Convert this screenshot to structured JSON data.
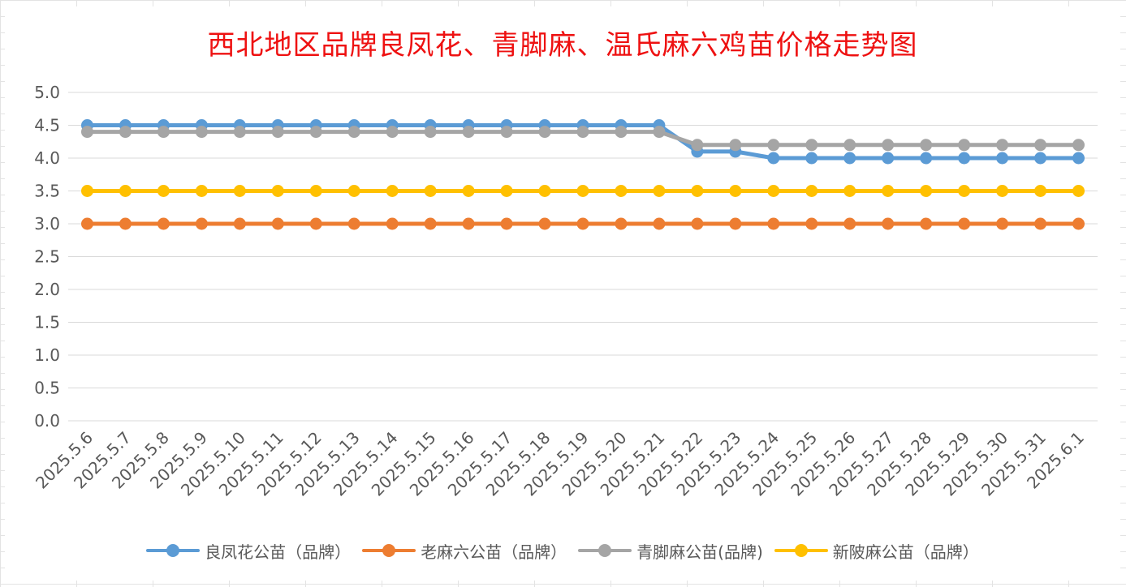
{
  "chart_data": {
    "type": "line",
    "title": "西北地区品牌良凤花、青脚麻、温氏麻六鸡苗价格走势图",
    "xlabel": "",
    "ylabel": "",
    "ylim": [
      0,
      5.0
    ],
    "yticks": [
      "0.0",
      "0.5",
      "1.0",
      "1.5",
      "2.0",
      "2.5",
      "3.0",
      "3.5",
      "4.0",
      "4.5",
      "5.0"
    ],
    "grid": true,
    "legend_position": "bottom",
    "x": [
      "2025.5.6",
      "2025.5.7",
      "2025.5.8",
      "2025.5.9",
      "2025.5.10",
      "2025.5.11",
      "2025.5.12",
      "2025.5.13",
      "2025.5.14",
      "2025.5.15",
      "2025.5.16",
      "2025.5.17",
      "2025.5.18",
      "2025.5.19",
      "2025.5.20",
      "2025.5.21",
      "2025.5.22",
      "2025.5.23",
      "2025.5.24",
      "2025.5.25",
      "2025.5.26",
      "2025.5.27",
      "2025.5.28",
      "2025.5.29",
      "2025.5.30",
      "2025.5.31",
      "2025.6.1"
    ],
    "series": [
      {
        "name": "良凤花公苗（品牌）",
        "color": "#5b9bd5",
        "values": [
          4.5,
          4.5,
          4.5,
          4.5,
          4.5,
          4.5,
          4.5,
          4.5,
          4.5,
          4.5,
          4.5,
          4.5,
          4.5,
          4.5,
          4.5,
          4.5,
          4.1,
          4.1,
          4.0,
          4.0,
          4.0,
          4.0,
          4.0,
          4.0,
          4.0,
          4.0,
          4.0
        ]
      },
      {
        "name": "老麻六公苗（品牌）",
        "color": "#ed7d31",
        "values": [
          3.0,
          3.0,
          3.0,
          3.0,
          3.0,
          3.0,
          3.0,
          3.0,
          3.0,
          3.0,
          3.0,
          3.0,
          3.0,
          3.0,
          3.0,
          3.0,
          3.0,
          3.0,
          3.0,
          3.0,
          3.0,
          3.0,
          3.0,
          3.0,
          3.0,
          3.0,
          3.0
        ]
      },
      {
        "name": "青脚麻公苗(品牌)",
        "color": "#a5a5a5",
        "values": [
          4.4,
          4.4,
          4.4,
          4.4,
          4.4,
          4.4,
          4.4,
          4.4,
          4.4,
          4.4,
          4.4,
          4.4,
          4.4,
          4.4,
          4.4,
          4.4,
          4.2,
          4.2,
          4.2,
          4.2,
          4.2,
          4.2,
          4.2,
          4.2,
          4.2,
          4.2,
          4.2
        ]
      },
      {
        "name": "新陂麻公苗（品牌）",
        "color": "#ffc000",
        "values": [
          3.5,
          3.5,
          3.5,
          3.5,
          3.5,
          3.5,
          3.5,
          3.5,
          3.5,
          3.5,
          3.5,
          3.5,
          3.5,
          3.5,
          3.5,
          3.5,
          3.5,
          3.5,
          3.5,
          3.5,
          3.5,
          3.5,
          3.5,
          3.5,
          3.5,
          3.5,
          3.5
        ]
      }
    ]
  }
}
